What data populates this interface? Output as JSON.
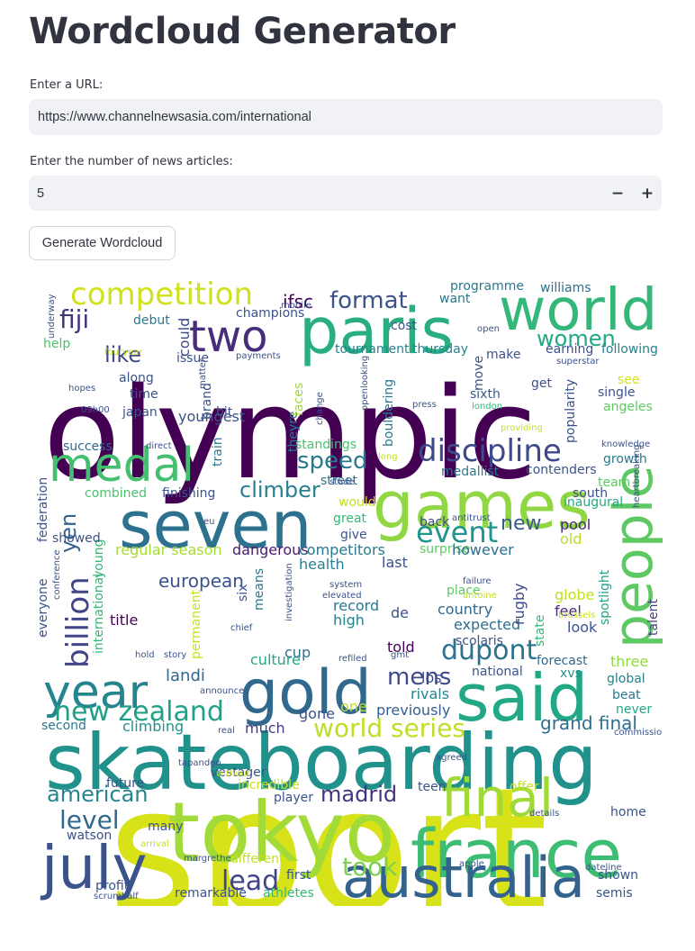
{
  "page": {
    "title": "Wordcloud Generator"
  },
  "url_field": {
    "label": "Enter a URL:",
    "value": "https://www.channelnewsasia.com/international"
  },
  "articles_field": {
    "label": "Enter the number of news articles:",
    "value": "5",
    "decrement": "−",
    "increment": "+"
  },
  "generate_button": {
    "label": "Generate Wordcloud"
  },
  "wordcloud": {
    "words": [
      {
        "text": "sport",
        "color": "#d8e219"
      },
      {
        "text": "olympic",
        "color": "#440154"
      },
      {
        "text": "skateboarding",
        "color": "#21918c"
      },
      {
        "text": "tokyo",
        "color": "#a2da37"
      },
      {
        "text": "seven",
        "color": "#2c728e"
      },
      {
        "text": "games",
        "color": "#90d743"
      },
      {
        "text": "paris",
        "color": "#28ae80"
      },
      {
        "text": "world",
        "color": "#35b779"
      },
      {
        "text": "medal",
        "color": "#44bf70"
      },
      {
        "text": "france",
        "color": "#3dbc74"
      },
      {
        "text": "said",
        "color": "#22a884"
      },
      {
        "text": "gold",
        "color": "#31688e"
      },
      {
        "text": "july",
        "color": "#3b528b"
      },
      {
        "text": "australia",
        "color": "#33638d"
      },
      {
        "text": "final",
        "color": "#a0da39"
      },
      {
        "text": "people",
        "color": "#5ec962"
      },
      {
        "text": "year",
        "color": "#25858e"
      },
      {
        "text": "two",
        "color": "#472d7b"
      },
      {
        "text": "discipline",
        "color": "#3e4989"
      },
      {
        "text": "competition",
        "color": "#d0e11c"
      },
      {
        "text": "billion",
        "color": "#414487"
      },
      {
        "text": "new zealand",
        "color": "#1fa187"
      },
      {
        "text": "dupont",
        "color": "#2c728e"
      },
      {
        "text": "event",
        "color": "#1f948c"
      },
      {
        "text": "world series",
        "color": "#bddf26"
      },
      {
        "text": "fiji",
        "color": "#46337e"
      },
      {
        "text": "format",
        "color": "#3b528b"
      },
      {
        "text": "women",
        "color": "#22a884"
      },
      {
        "text": "like",
        "color": "#3e4989"
      },
      {
        "text": "speed",
        "color": "#2a788e"
      },
      {
        "text": "climber",
        "color": "#27808e"
      },
      {
        "text": "madrid",
        "color": "#46337e"
      },
      {
        "text": "lead",
        "color": "#414487"
      },
      {
        "text": "level",
        "color": "#31688e"
      },
      {
        "text": "american",
        "color": "#25858e"
      },
      {
        "text": "took",
        "color": "#7ad151"
      },
      {
        "text": "mens",
        "color": "#3e4989"
      },
      {
        "text": "yen",
        "color": "#33638d"
      },
      {
        "text": "new",
        "color": "#365c8d"
      },
      {
        "text": "grand final",
        "color": "#2e6f8e"
      },
      {
        "text": "ifsc",
        "color": "#440154"
      },
      {
        "text": "could",
        "color": "#3e4989"
      },
      {
        "text": "youngest",
        "color": "#3b528b"
      },
      {
        "text": "european",
        "color": "#3b528b"
      },
      {
        "text": "regular season",
        "color": "#a5db36"
      },
      {
        "text": "dangerous",
        "color": "#481a6c"
      },
      {
        "text": "competitors",
        "color": "#2a788e"
      },
      {
        "text": "health",
        "color": "#27808e"
      },
      {
        "text": "title",
        "color": "#440154"
      },
      {
        "text": "culture",
        "color": "#22a884"
      },
      {
        "text": "cup",
        "color": "#2c728e"
      },
      {
        "text": "landi",
        "color": "#31688e"
      },
      {
        "text": "much",
        "color": "#433e85"
      },
      {
        "text": "climbing",
        "color": "#1f948c"
      },
      {
        "text": "second",
        "color": "#2a788e"
      },
      {
        "text": "gone",
        "color": "#3b528b"
      },
      {
        "text": "previously",
        "color": "#355f8d"
      },
      {
        "text": "rivals",
        "color": "#25858e"
      },
      {
        "text": "one",
        "color": "#bddf26"
      },
      {
        "text": "los",
        "color": "#3e4989"
      },
      {
        "text": "told",
        "color": "#440154"
      },
      {
        "text": "national",
        "color": "#3b528b"
      },
      {
        "text": "expected",
        "color": "#2e6f8e"
      },
      {
        "text": "country",
        "color": "#31688e"
      },
      {
        "text": "record",
        "color": "#2a788e"
      },
      {
        "text": "high",
        "color": "#26828e"
      },
      {
        "text": "de",
        "color": "#3b528b"
      },
      {
        "text": "place",
        "color": "#5ec962"
      },
      {
        "text": "rugby",
        "color": "#3e4989"
      },
      {
        "text": "state",
        "color": "#35b779"
      },
      {
        "text": "globe",
        "color": "#c2df23"
      },
      {
        "text": "feel",
        "color": "#482878"
      },
      {
        "text": "look",
        "color": "#3b528b"
      },
      {
        "text": "forecast",
        "color": "#31688e"
      },
      {
        "text": "xvs",
        "color": "#21918c"
      },
      {
        "text": "three",
        "color": "#90d743"
      },
      {
        "text": "global",
        "color": "#26828e"
      },
      {
        "text": "beat",
        "color": "#2a788e"
      },
      {
        "text": "never",
        "color": "#22a884"
      },
      {
        "text": "pool",
        "color": "#482878"
      },
      {
        "text": "old",
        "color": "#b8de29"
      },
      {
        "text": "south",
        "color": "#3b528b"
      },
      {
        "text": "inaugural",
        "color": "#23a983"
      },
      {
        "text": "spotlight",
        "color": "#1fa187"
      },
      {
        "text": "talent",
        "color": "#433e85"
      },
      {
        "text": "last",
        "color": "#3b528b"
      },
      {
        "text": "surprise",
        "color": "#5ec962"
      },
      {
        "text": "however",
        "color": "#2e6f8e"
      },
      {
        "text": "back",
        "color": "#3e4989"
      },
      {
        "text": "great",
        "color": "#35b779"
      },
      {
        "text": "would",
        "color": "#c8e020"
      },
      {
        "text": "give",
        "color": "#3b528b"
      },
      {
        "text": "street",
        "color": "#2c728e"
      },
      {
        "text": "medallist",
        "color": "#2a788e"
      },
      {
        "text": "contenders",
        "color": "#3b528b"
      },
      {
        "text": "growth",
        "color": "#2a788e"
      },
      {
        "text": "team",
        "color": "#5ec962"
      },
      {
        "text": "finishing",
        "color": "#3b528b"
      },
      {
        "text": "combined",
        "color": "#4ac16d"
      },
      {
        "text": "young",
        "color": "#35b779"
      },
      {
        "text": "federation",
        "color": "#3b528b"
      },
      {
        "text": "showed",
        "color": "#3b528b"
      },
      {
        "text": "success",
        "color": "#31688e"
      },
      {
        "text": "standings",
        "color": "#4ac16d"
      },
      {
        "text": "theyre",
        "color": "#2a788e"
      },
      {
        "text": "bouldering",
        "color": "#2a788e"
      },
      {
        "text": "popularity",
        "color": "#3b528b"
      },
      {
        "text": "get",
        "color": "#3b528b"
      },
      {
        "text": "angeles",
        "color": "#5ec962"
      },
      {
        "text": "sixth",
        "color": "#355f8d"
      },
      {
        "text": "move",
        "color": "#3b528b"
      },
      {
        "text": "see",
        "color": "#d8e219"
      },
      {
        "text": "single",
        "color": "#3b528b"
      },
      {
        "text": "bit",
        "color": "#3b528b"
      },
      {
        "text": "train",
        "color": "#2a788e"
      },
      {
        "text": "brand",
        "color": "#3b528b"
      },
      {
        "text": "time",
        "color": "#3b528b"
      },
      {
        "text": "japan",
        "color": "#3b528b"
      },
      {
        "text": "along",
        "color": "#3b528b"
      },
      {
        "text": "issue",
        "color": "#3b528b"
      },
      {
        "text": "debut",
        "color": "#2a788e"
      },
      {
        "text": "help",
        "color": "#4ac16d"
      },
      {
        "text": "champions",
        "color": "#3b528b"
      },
      {
        "text": "cost",
        "color": "#3b528b"
      },
      {
        "text": "want",
        "color": "#2a788e"
      },
      {
        "text": "programme",
        "color": "#2a788e"
      },
      {
        "text": "williams",
        "color": "#2e6f8e"
      },
      {
        "text": "make",
        "color": "#3b528b"
      },
      {
        "text": "earning",
        "color": "#3b528b"
      },
      {
        "text": "following",
        "color": "#26828e"
      },
      {
        "text": "tournament",
        "color": "#26828e"
      },
      {
        "text": "thursday",
        "color": "#26828e"
      },
      {
        "text": "everyone",
        "color": "#3b528b"
      },
      {
        "text": "international",
        "color": "#35b779"
      },
      {
        "text": "six",
        "color": "#3b528b"
      },
      {
        "text": "means",
        "color": "#2a788e"
      },
      {
        "text": "permanent",
        "color": "#c8e020"
      },
      {
        "text": "faces",
        "color": "#a0da39"
      },
      {
        "text": "athletes",
        "color": "#35b779"
      },
      {
        "text": "remarkable",
        "color": "#3b528b"
      },
      {
        "text": "profit",
        "color": "#3b528b"
      },
      {
        "text": "watson",
        "color": "#3b528b"
      },
      {
        "text": "future",
        "color": "#3b528b"
      },
      {
        "text": "many",
        "color": "#3b528b"
      },
      {
        "text": "vestager",
        "color": "#3b528b"
      },
      {
        "text": "player",
        "color": "#3b528b"
      },
      {
        "text": "first",
        "color": "#3b528b"
      },
      {
        "text": "different",
        "color": "#c8e020"
      },
      {
        "text": "incredible",
        "color": "#c8e020"
      },
      {
        "text": "teen",
        "color": "#3b528b"
      },
      {
        "text": "offer",
        "color": "#c8e020"
      },
      {
        "text": "home",
        "color": "#3b528b"
      },
      {
        "text": "shown",
        "color": "#3b528b"
      },
      {
        "text": "semis",
        "color": "#3b528b"
      },
      {
        "text": "mobile",
        "color": "#3b528b"
      },
      {
        "text": "underway",
        "color": "#3b528b"
      },
      {
        "text": "fouryear",
        "color": "#c8e020"
      },
      {
        "text": "payments",
        "color": "#3b528b"
      },
      {
        "text": "matter",
        "color": "#3b528b"
      },
      {
        "text": "hopes",
        "color": "#3b528b"
      },
      {
        "text": "09h00",
        "color": "#3b528b"
      },
      {
        "text": "open",
        "color": "#3b528b"
      },
      {
        "text": "superstar",
        "color": "#3b528b"
      },
      {
        "text": "providing",
        "color": "#c8e020"
      },
      {
        "text": "press",
        "color": "#3b528b"
      },
      {
        "text": "london",
        "color": "#35b779"
      },
      {
        "text": "change",
        "color": "#3b528b"
      },
      {
        "text": "openlooking",
        "color": "#3b528b"
      },
      {
        "text": "direct",
        "color": "#3b528b"
      },
      {
        "text": "knowledge",
        "color": "#3b528b"
      },
      {
        "text": "heartbreaking",
        "color": "#3b528b"
      },
      {
        "text": "long",
        "color": "#c8e020"
      },
      {
        "text": "stade",
        "color": "#3b528b"
      },
      {
        "text": "antitrust",
        "color": "#3b528b"
      },
      {
        "text": "eu",
        "color": "#3b528b"
      },
      {
        "text": "conference",
        "color": "#3b528b"
      },
      {
        "text": "system",
        "color": "#3b528b"
      },
      {
        "text": "elevated",
        "color": "#3b528b"
      },
      {
        "text": "investigation",
        "color": "#3b528b"
      },
      {
        "text": "failure",
        "color": "#3b528b"
      },
      {
        "text": "antoine",
        "color": "#c8e020"
      },
      {
        "text": "brussels",
        "color": "#c8e020"
      },
      {
        "text": "chief",
        "color": "#3b528b"
      },
      {
        "text": "story",
        "color": "#3b528b"
      },
      {
        "text": "hold",
        "color": "#3b528b"
      },
      {
        "text": "refiled",
        "color": "#3b528b"
      },
      {
        "text": "gmt",
        "color": "#3b528b"
      },
      {
        "text": "real",
        "color": "#3b528b"
      },
      {
        "text": "commission",
        "color": "#3b528b"
      },
      {
        "text": "agreed",
        "color": "#3b528b"
      },
      {
        "text": "tapandgo",
        "color": "#3b528b"
      },
      {
        "text": "without",
        "color": "#c8e020"
      },
      {
        "text": "details",
        "color": "#3b528b"
      },
      {
        "text": "margrethe",
        "color": "#3b528b"
      },
      {
        "text": "arrival",
        "color": "#c8e020"
      },
      {
        "text": "apple",
        "color": "#3b528b"
      },
      {
        "text": "dateline",
        "color": "#3b528b"
      },
      {
        "text": "scrumhalf",
        "color": "#3b528b"
      },
      {
        "text": "announce",
        "color": "#3b528b"
      },
      {
        "text": "scolaris",
        "color": "#3b528b"
      }
    ]
  }
}
